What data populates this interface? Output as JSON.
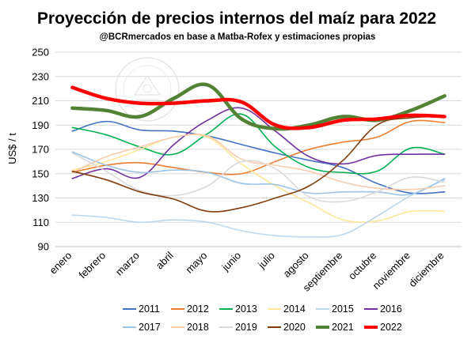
{
  "chart_data": {
    "type": "line",
    "title": "Proyección de precios internos del maíz para 2022",
    "subtitle": "@BCRmercados en base a Matba-Rofex y estimaciones propias",
    "xlabel": "",
    "ylabel": "US$ / t",
    "ylim": [
      90,
      250
    ],
    "yticks": [
      90,
      110,
      130,
      150,
      170,
      190,
      210,
      230,
      250
    ],
    "grid": true,
    "legend_position": "bottom",
    "categories": [
      "enero",
      "febrero",
      "marzo",
      "abril",
      "mayo",
      "junio",
      "julio",
      "agosto",
      "septiembre",
      "octubre",
      "noviembre",
      "diciembre"
    ],
    "series": [
      {
        "name": "2011",
        "color": "#4472c4",
        "width": 1.6,
        "values": [
          185,
          193,
          186,
          185,
          181,
          174,
          167,
          161,
          155,
          142,
          134,
          135
        ]
      },
      {
        "name": "2012",
        "color": "#ed7d31",
        "width": 1.6,
        "values": [
          151,
          157,
          159,
          155,
          151,
          150,
          160,
          170,
          176,
          180,
          193,
          192
        ]
      },
      {
        "name": "2013",
        "color": "#00b050",
        "width": 1.6,
        "values": [
          188,
          182,
          172,
          166,
          183,
          199,
          172,
          155,
          151,
          152,
          171,
          166
        ]
      },
      {
        "name": "2014",
        "color": "#ffe699",
        "width": 1.6,
        "values": [
          153,
          160,
          170,
          180,
          180,
          158,
          140,
          126,
          112,
          111,
          119,
          119
        ]
      },
      {
        "name": "2015",
        "color": "#bdd7ee",
        "width": 1.6,
        "values": [
          116,
          114,
          110,
          112,
          110,
          103,
          99,
          98,
          100,
          115,
          132,
          145
        ]
      },
      {
        "name": "2016",
        "color": "#7030a0",
        "width": 1.6,
        "values": [
          146,
          154,
          147,
          174,
          194,
          204,
          185,
          164,
          158,
          165,
          166,
          166
        ]
      },
      {
        "name": "2017",
        "color": "#9dc3e6",
        "width": 1.6,
        "values": [
          168,
          157,
          151,
          153,
          151,
          142,
          141,
          134,
          135,
          135,
          133,
          146
        ]
      },
      {
        "name": "2018",
        "color": "#f8cbad",
        "width": 1.6,
        "values": [
          151,
          164,
          172,
          180,
          181,
          162,
          157,
          152,
          143,
          138,
          137,
          140
        ]
      },
      {
        "name": "2019",
        "color": "#d9d9d9",
        "width": 1.6,
        "values": [
          167,
          152,
          136,
          132,
          140,
          160,
          154,
          131,
          127,
          135,
          147,
          143
        ]
      },
      {
        "name": "2020",
        "color": "#843c0c",
        "width": 1.6,
        "values": [
          152,
          145,
          135,
          129,
          119,
          122,
          130,
          140,
          161,
          190,
          196,
          197
        ]
      },
      {
        "name": "2021",
        "color": "#548235",
        "width": 4.5,
        "values": [
          204,
          202,
          197,
          212,
          223,
          195,
          187,
          190,
          197,
          194,
          202,
          214
        ]
      },
      {
        "name": "2022",
        "color": "#ff0000",
        "width": 4.5,
        "values": [
          221,
          212,
          208,
          208,
          210,
          209,
          190,
          188,
          194,
          195,
          198,
          197
        ]
      }
    ]
  }
}
